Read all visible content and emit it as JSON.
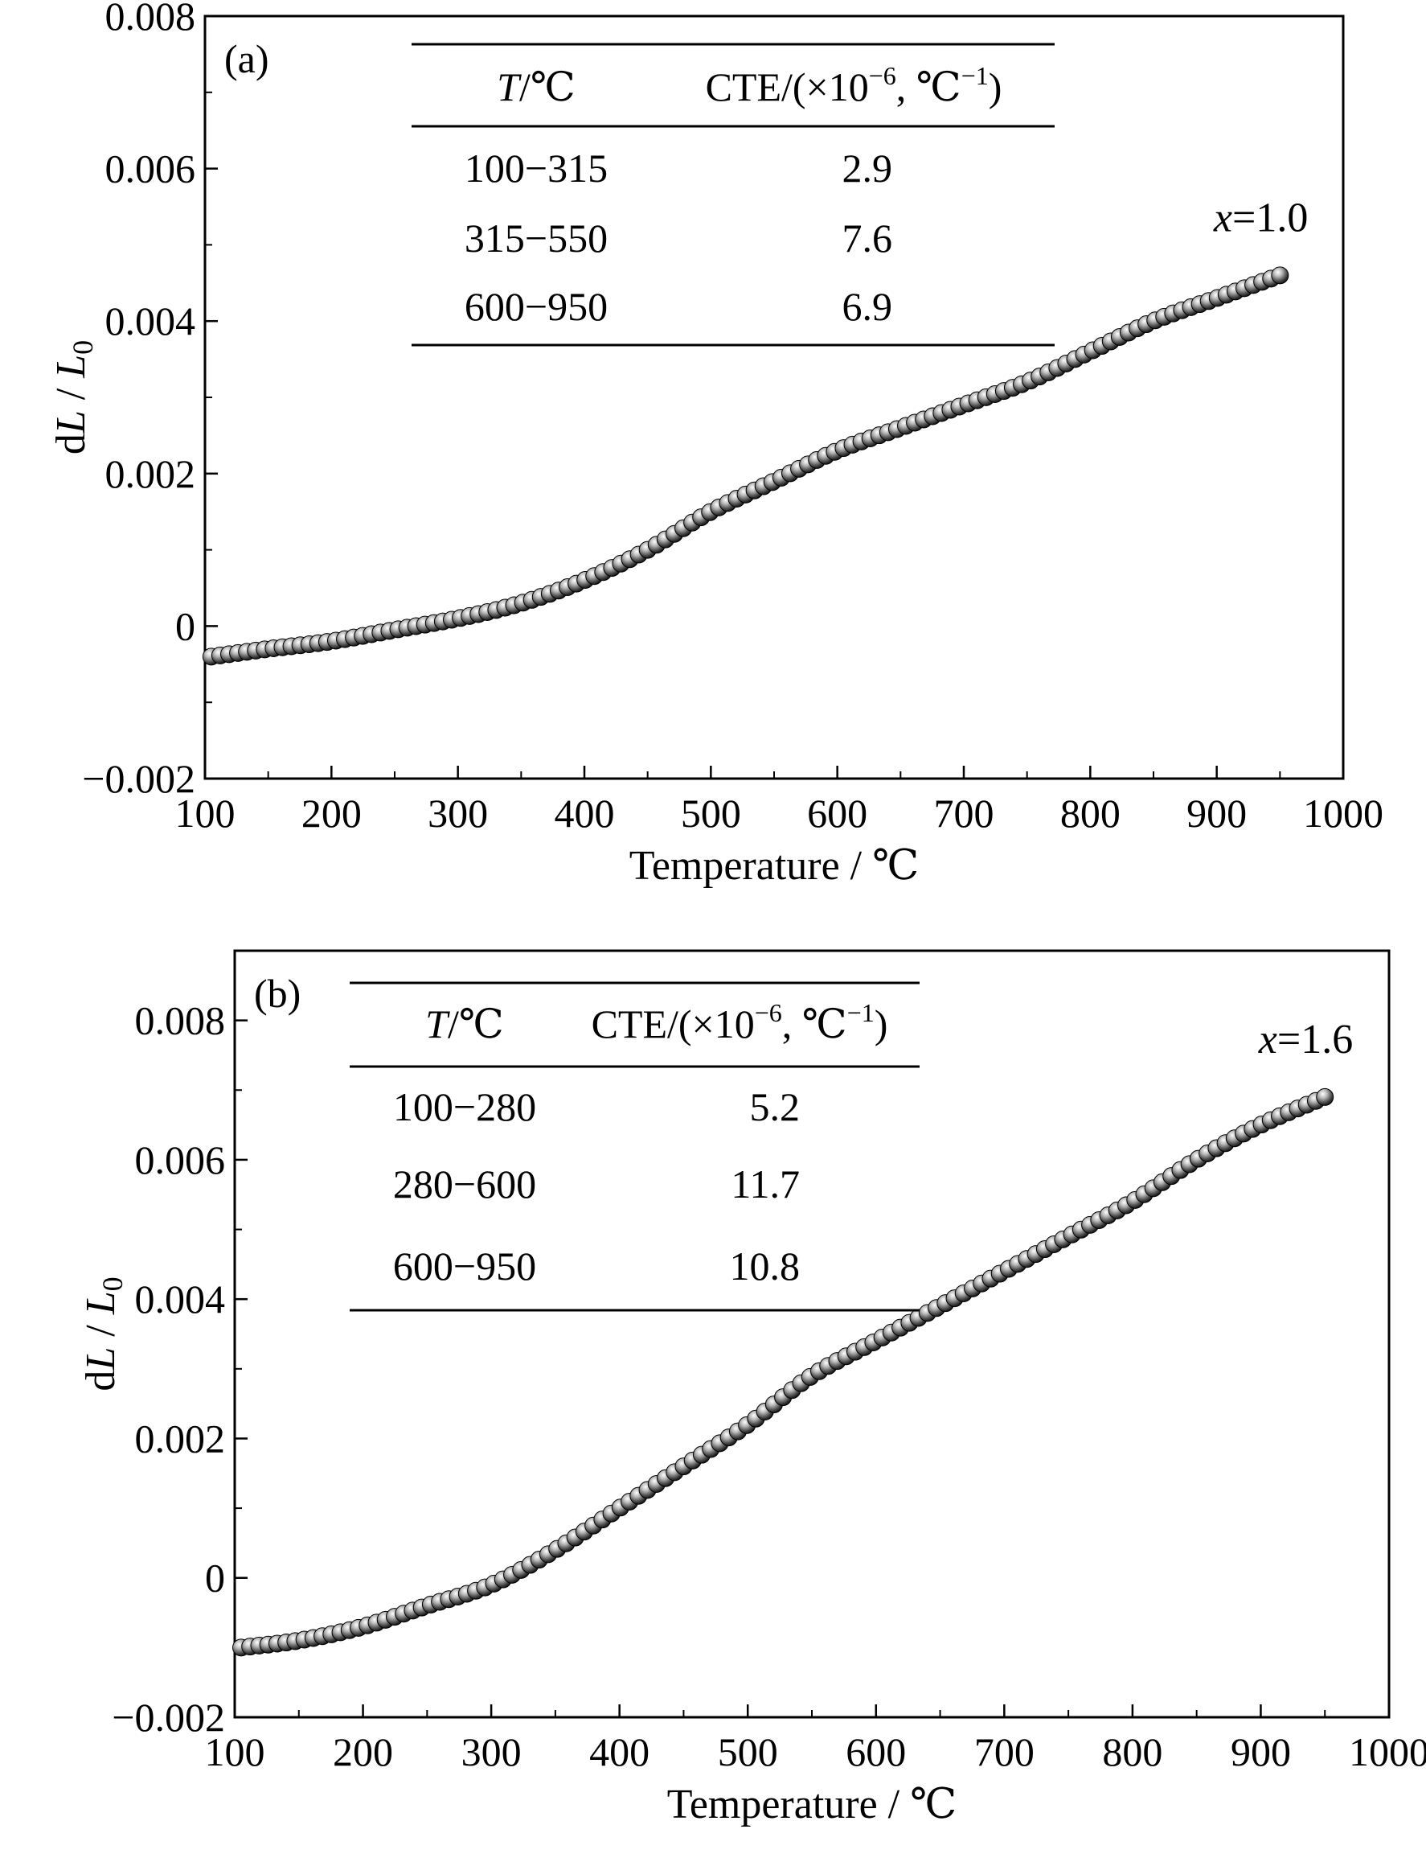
{
  "chart_data": [
    {
      "type": "scatter",
      "panel_label": "(a)",
      "xlabel": "Temperature / ℃",
      "ylabel": {
        "prefix": "d",
        "L": "L",
        "slash": " / ",
        "L0": "L",
        "sub": "0"
      },
      "xlim": [
        100,
        1000
      ],
      "ylim": [
        -0.002,
        0.008
      ],
      "x_ticks": [
        100,
        200,
        300,
        400,
        500,
        600,
        700,
        800,
        900,
        1000
      ],
      "y_ticks": [
        -0.002,
        0,
        0.002,
        0.004,
        0.006,
        0.008
      ],
      "x_tick_labels": [
        "100",
        "200",
        "300",
        "400",
        "500",
        "600",
        "700",
        "800",
        "900",
        "1000"
      ],
      "y_tick_labels": [
        "−0.002",
        "0",
        "0.002",
        "0.004",
        "0.006",
        "0.008"
      ],
      "series_label": {
        "var": "x",
        "value": "=1.0"
      },
      "marker_color": "#4a4a4a",
      "curve": {
        "x": [
          105,
          150,
          200,
          250,
          300,
          350,
          400,
          450,
          500,
          550,
          600,
          650,
          700,
          750,
          800,
          850,
          900,
          950
        ],
        "y": [
          -0.0004,
          -0.0003,
          -0.0002,
          -5e-05,
          0.0001,
          0.0003,
          0.0006,
          0.001,
          0.0015,
          0.0019,
          0.0023,
          0.0026,
          0.0029,
          0.0032,
          0.0036,
          0.004,
          0.0043,
          0.0046
        ]
      },
      "table": {
        "header_T_var": "T",
        "header_T_unit": "/℃",
        "header_cte_a": "CTE/(×10",
        "header_cte_exp": "−6",
        "header_cte_b": ", ℃",
        "header_cte_exp2": "−1",
        "header_cte_c": ")",
        "rows": [
          {
            "range": "100−315",
            "cte": "2.9"
          },
          {
            "range": "315−550",
            "cte": "7.6"
          },
          {
            "range": "600−950",
            "cte": "6.9"
          }
        ]
      }
    },
    {
      "type": "scatter",
      "panel_label": "(b)",
      "xlabel": "Temperature / ℃",
      "ylabel": {
        "prefix": "d",
        "L": "L",
        "slash": " / ",
        "L0": "L",
        "sub": "0"
      },
      "xlim": [
        100,
        1000
      ],
      "ylim": [
        -0.002,
        0.009
      ],
      "x_ticks": [
        100,
        200,
        300,
        400,
        500,
        600,
        700,
        800,
        900,
        1000
      ],
      "y_ticks": [
        -0.002,
        0,
        0.002,
        0.004,
        0.006,
        0.008
      ],
      "x_tick_labels": [
        "100",
        "200",
        "300",
        "400",
        "500",
        "600",
        "700",
        "800",
        "900",
        "1000"
      ],
      "y_tick_labels": [
        "−0.002",
        "0",
        "0.002",
        "0.004",
        "0.006",
        "0.008"
      ],
      "series_label": {
        "var": "x",
        "value": "=1.6"
      },
      "marker_color": "#4a4a4a",
      "curve": {
        "x": [
          105,
          150,
          200,
          250,
          300,
          350,
          400,
          450,
          500,
          550,
          600,
          650,
          700,
          750,
          800,
          850,
          900,
          950
        ],
        "y": [
          -0.001,
          -0.0009,
          -0.0007,
          -0.0004,
          -0.0001,
          0.0004,
          0.001,
          0.0016,
          0.0022,
          0.0029,
          0.0034,
          0.0039,
          0.0044,
          0.0049,
          0.0054,
          0.006,
          0.0065,
          0.0069
        ]
      },
      "table": {
        "header_T_var": "T",
        "header_T_unit": "/℃",
        "header_cte_a": "CTE/(×10",
        "header_cte_exp": "−6",
        "header_cte_b": ", ℃",
        "header_cte_exp2": "−1",
        "header_cte_c": ")",
        "rows": [
          {
            "range": "100−280",
            "cte": "5.2"
          },
          {
            "range": "280−600",
            "cte": "11.7"
          },
          {
            "range": "600−950",
            "cte": "10.8"
          }
        ]
      }
    }
  ]
}
